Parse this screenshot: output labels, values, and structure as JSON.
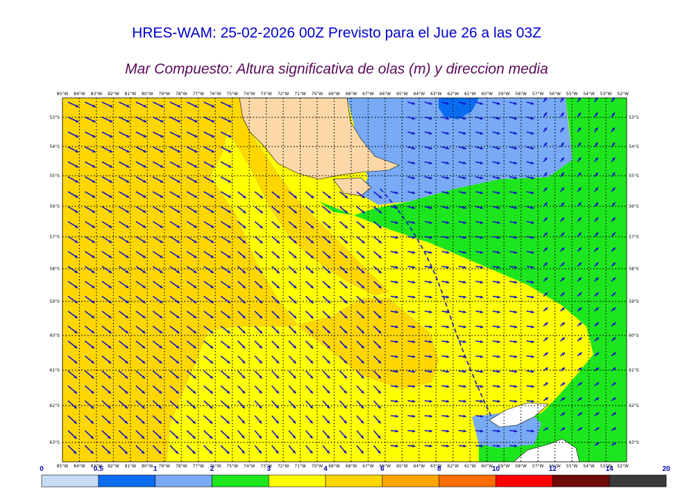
{
  "header": {
    "title": "HRES-WAM: 25-02-2026 00Z Previsto para el Jue 26 a las 03Z",
    "subtitle": "Mar Compuesto: Altura significativa de olas (m) y direccion media"
  },
  "chart_data": {
    "type": "heatmap",
    "title": "HRES-WAM: 25-02-2026 00Z Previsto para el Jue 26 a las 03Z",
    "subtitle": "Mar Compuesto: Altura significativa de olas (m) y direccion media",
    "lon_range_deg": [
      -85,
      -52
    ],
    "lat_range_deg": [
      -52.7,
      -63.6
    ],
    "lon_ticks": [
      "85°W",
      "84°W",
      "83°W",
      "82°W",
      "81°W",
      "80°W",
      "79°W",
      "78°W",
      "77°W",
      "76°W",
      "75°W",
      "74°W",
      "73°W",
      "72°W",
      "71°W",
      "70°W",
      "69°W",
      "68°W",
      "67°W",
      "66°W",
      "65°W",
      "64°W",
      "63°W",
      "62°W",
      "61°W",
      "60°W",
      "59°W",
      "58°W",
      "57°W",
      "56°W",
      "55°W",
      "54°W",
      "53°W",
      "52°W"
    ],
    "lat_ticks": [
      "53°S",
      "54°S",
      "55°S",
      "56°S",
      "57°S",
      "58°S",
      "59°S",
      "60°S",
      "61°S",
      "62°S",
      "63°S"
    ],
    "colorbar": {
      "tick_labels": [
        "0",
        "0.5",
        "1",
        "2",
        "3",
        "4",
        "6",
        "8",
        "10",
        "12",
        "14",
        "20"
      ],
      "colors": [
        "#c6dcf5",
        "#0a6cf0",
        "#78aaf5",
        "#1ee61e",
        "#ffff00",
        "#ffd700",
        "#ffa500",
        "#ff6d00",
        "#ff0000",
        "#6e0a0a",
        "#3a3a3a"
      ]
    },
    "grid": "dotted",
    "track": "dashed",
    "land_color": "#fcd8a8",
    "arrow_color": "#1010cc"
  }
}
